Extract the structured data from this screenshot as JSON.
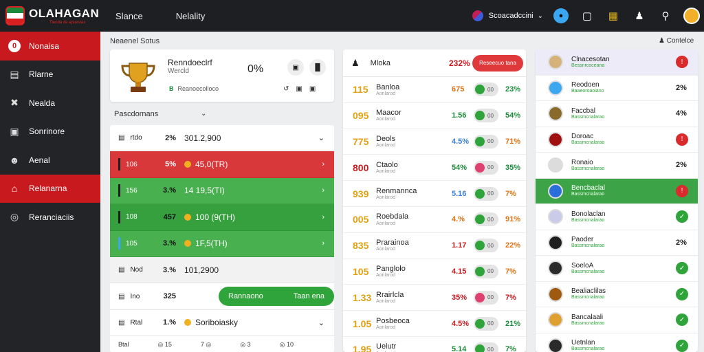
{
  "header": {
    "logo": "OLAHAGAN",
    "logo_sub": "Tienda de apuestas",
    "nav": [
      "Slance",
      "Nelality"
    ],
    "account": "Scoacadccini",
    "notif_count": "●"
  },
  "sidebar": {
    "items": [
      {
        "label": "Nonaisa",
        "icon": "0"
      },
      {
        "label": "Rlarne",
        "icon": "▤"
      },
      {
        "label": "Nealda",
        "icon": "✖"
      },
      {
        "label": "Sonrinore",
        "icon": "▣"
      },
      {
        "label": "Aenal",
        "icon": "☻"
      },
      {
        "label": "Relanarna",
        "icon": "⌂"
      },
      {
        "label": "Reranciaciis",
        "icon": "◎"
      }
    ],
    "active_index": 5
  },
  "left": {
    "section_title": "Neaenel Sotus",
    "card": {
      "title": "Renndoeclrf",
      "subtitle": "Wercld",
      "percent": "0%",
      "btn1": "▣",
      "btn2": "▐▌",
      "footer_badge": "B",
      "footer_text": "Reanoecolloco",
      "footer_icons": "↺▣▣"
    },
    "filter": "Pascdornans",
    "rows": [
      {
        "id": "rtdo",
        "pct": "2%",
        "value": "301.2,900",
        "style": "plain",
        "bar": "",
        "dot": false,
        "right": "⌄"
      },
      {
        "id": "106",
        "pct": "5%",
        "value": "45,0(TR)",
        "style": "red",
        "bar": "#1e1e1e",
        "dot": true,
        "right": "›"
      },
      {
        "id": "156",
        "pct": "3.%",
        "value": "14 19,5(TI)",
        "style": "green",
        "bar": "#1e1e1e",
        "dot": false,
        "right": "›"
      },
      {
        "id": "108",
        "pct": "457",
        "value": "100 (9(TH)",
        "style": "green2",
        "bar": "#1e1e1e",
        "dot": true,
        "right": "›"
      },
      {
        "id": "105",
        "pct": "3.%",
        "value": "1F,5(TH)",
        "style": "green",
        "bar": "#3aa7f0",
        "dot": true,
        "right": "›"
      },
      {
        "id": "Nod",
        "pct": "3.%",
        "value": "101,2900",
        "style": "grey",
        "bar": "",
        "dot": false,
        "right": ""
      },
      {
        "id": "Ino",
        "pct": "325",
        "value": "",
        "style": "plain",
        "bar": "",
        "dot": false,
        "right": ""
      },
      {
        "id": "Rtal",
        "pct": "1.%",
        "value": "Soriboiasky",
        "style": "plain",
        "bar": "",
        "dot": true,
        "right": "⌄"
      }
    ],
    "cta_left": "Rannaono",
    "cta_right": "Taan ena",
    "footer": [
      "Btal",
      "◎ 15",
      "7 ◎",
      "◎ 3",
      "◎ 10"
    ]
  },
  "middle": {
    "head_label": "Mloka",
    "head_pct": "232%",
    "head_btn": "Reseecuo tana",
    "rows": [
      {
        "odd": "115",
        "name": "Banloa",
        "sub": "Aonlarod",
        "v1": "675",
        "v1c": "#e07010",
        "tog": "00",
        "pink": false,
        "v2": "23%",
        "v2c": "#1a8a3a"
      },
      {
        "odd": "095",
        "name": "Maacor",
        "sub": "Aonlarod",
        "v1": "1.56",
        "v1c": "#1a8a3a",
        "tog": "00",
        "pink": false,
        "v2": "54%",
        "v2c": "#1a8a3a"
      },
      {
        "odd": "775",
        "name": "Deols",
        "sub": "Aonlarod",
        "v1": "4.5%",
        "v1c": "#3a7fd9",
        "tog": "00",
        "pink": false,
        "v2": "71%",
        "v2c": "#e07010"
      },
      {
        "odd": "800",
        "name": "Ctaolo",
        "sub": "Aonlarod",
        "v1": "54%",
        "v1c": "#1a8a3a",
        "tog": "00",
        "pink": true,
        "v2": "35%",
        "v2c": "#1a8a3a",
        "red": true
      },
      {
        "odd": "939",
        "name": "Renmannca",
        "sub": "Aonlarod",
        "v1": "5.16",
        "v1c": "#3a7fd9",
        "tog": "00",
        "pink": false,
        "v2": "7%",
        "v2c": "#e07010"
      },
      {
        "odd": "005",
        "name": "Roebdala",
        "sub": "Aonlarod",
        "v1": "4.%",
        "v1c": "#e07010",
        "tog": "00",
        "pink": false,
        "v2": "91%",
        "v2c": "#e07010"
      },
      {
        "odd": "835",
        "name": "Prarainoa",
        "sub": "Aonlarod",
        "v1": "1.17",
        "v1c": "#c8191e",
        "tog": "00",
        "pink": false,
        "v2": "22%",
        "v2c": "#e07010"
      },
      {
        "odd": "105",
        "name": "Panglolo",
        "sub": "Aonlarod",
        "v1": "4.15",
        "v1c": "#c8191e",
        "tog": "00",
        "pink": false,
        "v2": "7%",
        "v2c": "#e07010"
      },
      {
        "odd": "1.33",
        "name": "Rrairlcla",
        "sub": "Aonlarod",
        "v1": "35%",
        "v1c": "#c8191e",
        "tog": "00",
        "pink": true,
        "v2": "7%",
        "v2c": "#c8191e"
      },
      {
        "odd": "1.05",
        "name": "Posbeoca",
        "sub": "Aonlarod",
        "v1": "4.5%",
        "v1c": "#c8191e",
        "tog": "00",
        "pink": false,
        "v2": "21%",
        "v2c": "#1a8a3a"
      },
      {
        "odd": "1.95",
        "name": "Uelutr",
        "sub": "Aonlarod",
        "v1": "5.14",
        "v1c": "#1a8a3a",
        "tog": "00",
        "pink": false,
        "v2": "7%",
        "v2c": "#1a8a3a"
      }
    ]
  },
  "right": {
    "head": "Contelce",
    "rows": [
      {
        "name": "Clnacesotan",
        "sub": "Bessnrcoceana",
        "ava": "#d4b27a",
        "stat": "!",
        "stype": "red"
      },
      {
        "name": "Reodoen",
        "sub": "Baaeoroaoiano",
        "ava": "#3aa7f0",
        "stat": "2%",
        "stype": "txt"
      },
      {
        "name": "Faccbal",
        "sub": "Bassmcnalarao",
        "ava": "#8a6a2a",
        "stat": "4%",
        "stype": "txt"
      },
      {
        "name": "Doroac",
        "sub": "Bassmcnalarao",
        "ava": "#a01010",
        "stat": "!",
        "stype": "red"
      },
      {
        "name": "Ronaio",
        "sub": "Bassmcnalarao",
        "ava": "#dcdcdc",
        "stat": "2%",
        "stype": "txt"
      },
      {
        "name": "Bencbaclal",
        "sub": "Bassmcnalarao",
        "ava": "#2a6fd9",
        "stat": "!",
        "stype": "red",
        "sel": true
      },
      {
        "name": "Bonolaclan",
        "sub": "Bassmcnalarao",
        "ava": "#c9cbe8",
        "stat": "✓",
        "stype": "green"
      },
      {
        "name": "Paoder",
        "sub": "Bassmcnalarao",
        "ava": "#1e1e1e",
        "stat": "2%",
        "stype": "txt"
      },
      {
        "name": "SoeloA",
        "sub": "Bassmcnalarao",
        "ava": "#2a2a2a",
        "stat": "✓",
        "stype": "green"
      },
      {
        "name": "Bealiaclilas",
        "sub": "Bassmcnalarao",
        "ava": "#a05a10",
        "stat": "✓",
        "stype": "green"
      },
      {
        "name": "Bancalaali",
        "sub": "Bassmcnalarao",
        "ava": "#e0a030",
        "stat": "✓",
        "stype": "green"
      },
      {
        "name": "Uetnlan",
        "sub": "Bassmcnalarao",
        "ava": "#2a2a2a",
        "stat": "✓",
        "stype": "green"
      }
    ]
  }
}
